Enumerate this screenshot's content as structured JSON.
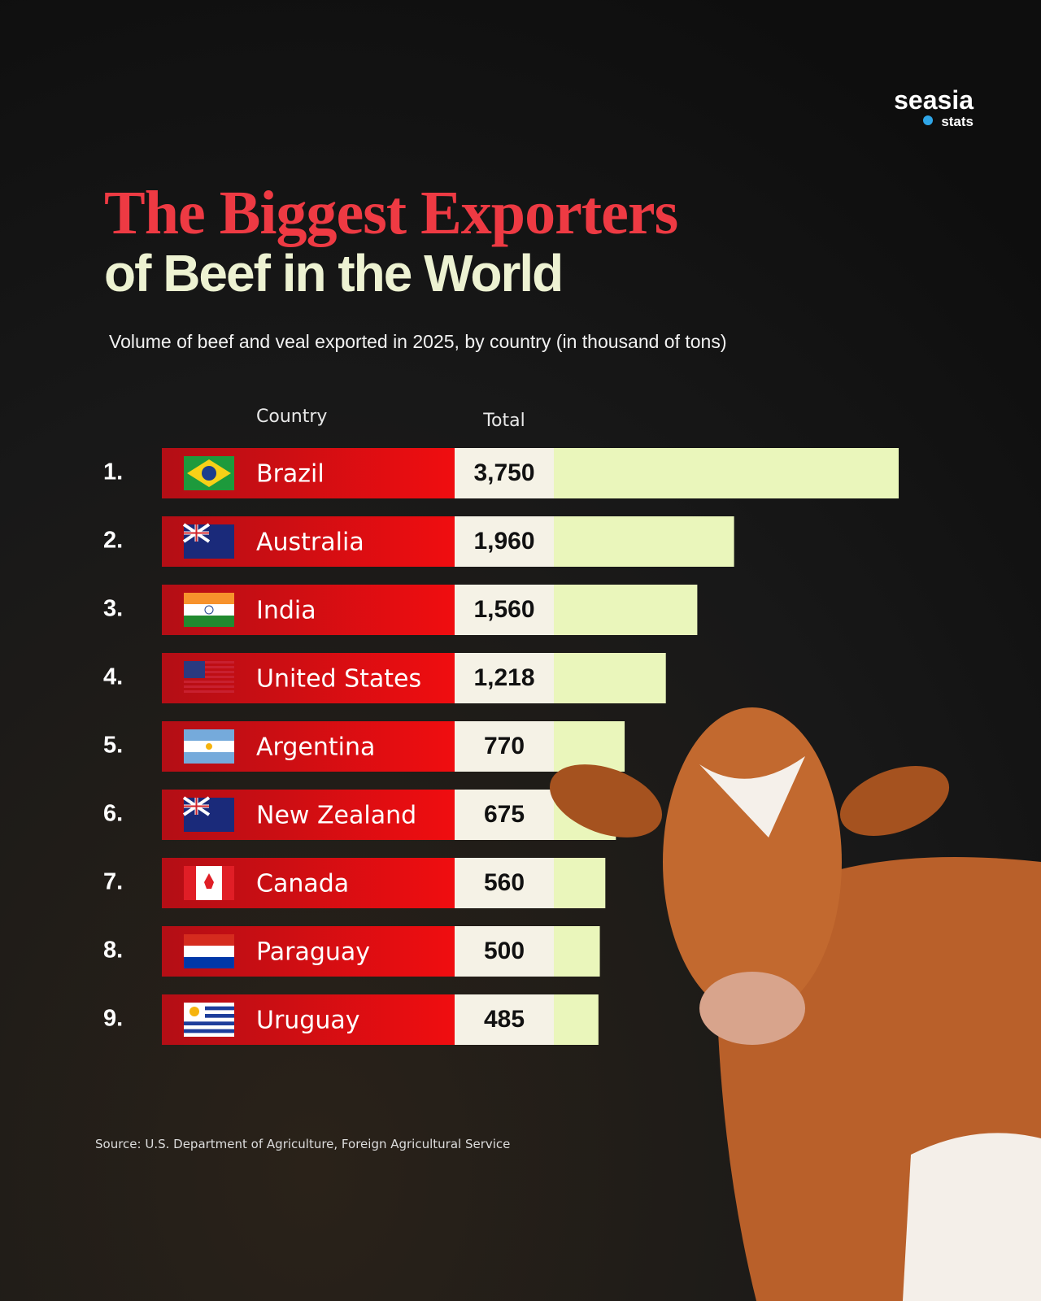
{
  "logo": {
    "name": "seasia",
    "sub": "stats"
  },
  "chart_data": {
    "type": "bar",
    "title": "The Biggest Exporters",
    "title_line2": "of Beef in the World",
    "subtitle": "Volume of beef and veal exported in 2025, by country (in thousand of tons)",
    "column_headers": [
      "Country",
      "Total"
    ],
    "ranks": [
      "1.",
      "2.",
      "3.",
      "4.",
      "5.",
      "6.",
      "7.",
      "8.",
      "9."
    ],
    "categories": [
      "Brazil",
      "Australia",
      "India",
      "United States",
      "Argentina",
      "New Zealand",
      "Canada",
      "Paraguay",
      "Uruguay"
    ],
    "values": [
      3750,
      1960,
      1560,
      1218,
      770,
      675,
      560,
      500,
      485
    ],
    "value_labels": [
      "3,750",
      "1,960",
      "1,560",
      "1,218",
      "770",
      "675",
      "560",
      "500",
      "485"
    ],
    "color": "#eaf6bb"
  },
  "source": "Source: U.S. Department of Agriculture, Foreign Agricultural Service"
}
